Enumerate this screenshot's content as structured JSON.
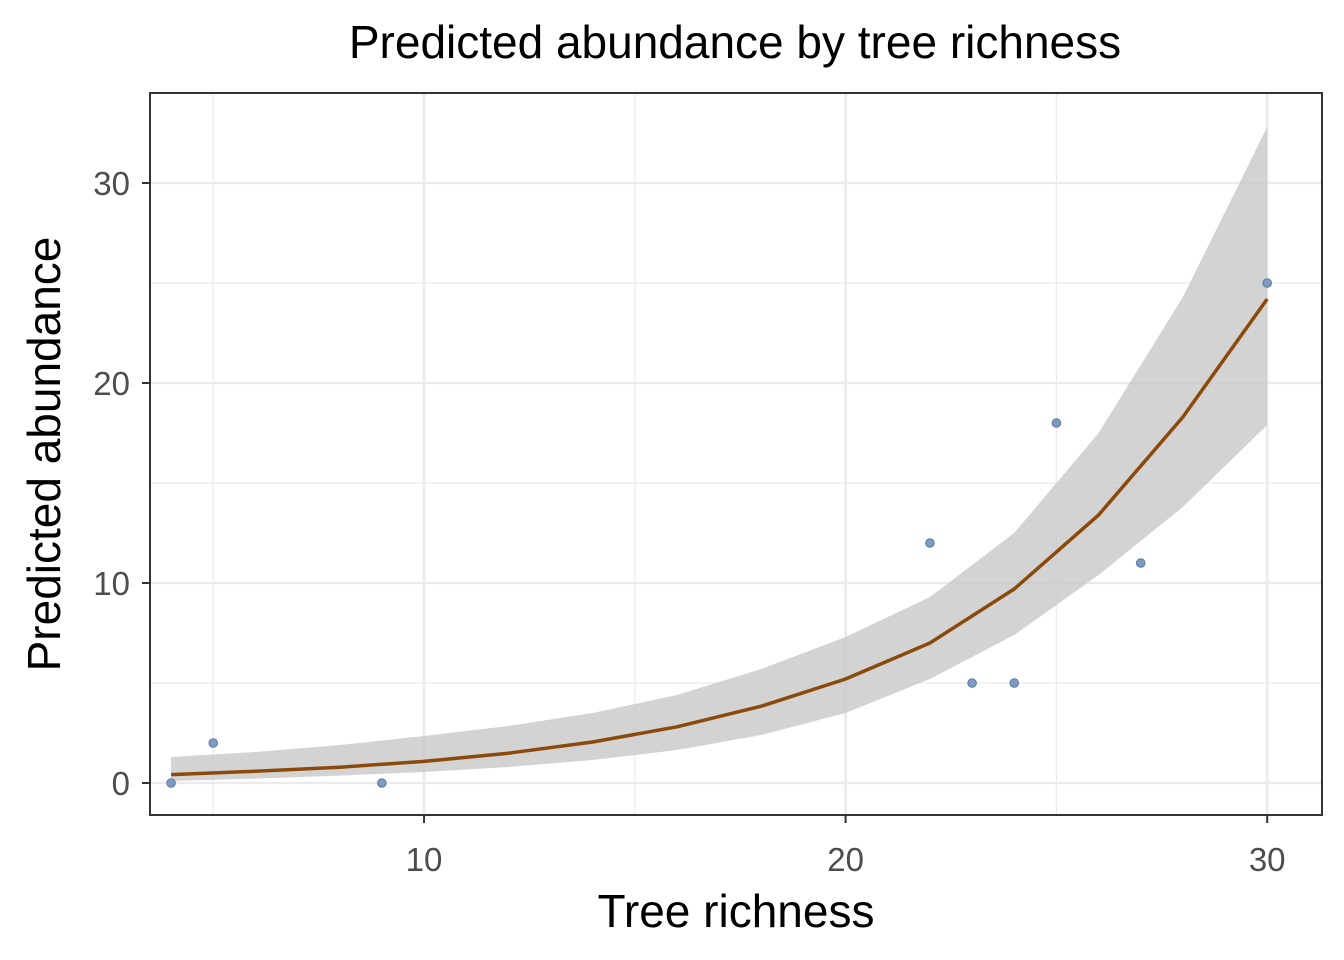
{
  "chart_data": {
    "type": "scatter",
    "title": "Predicted abundance by tree richness",
    "xlabel": "Tree richness",
    "ylabel": "Predicted abundance",
    "xlim": [
      3.5,
      31.3
    ],
    "ylim": [
      -1.6,
      34.5
    ],
    "x_ticks": [
      10,
      20,
      30
    ],
    "y_ticks": [
      0,
      10,
      20,
      30
    ],
    "x_tick_labels": [
      "10",
      "20",
      "30"
    ],
    "y_tick_labels": [
      "0",
      "10",
      "20",
      "30"
    ],
    "grid": true,
    "legend": "none",
    "points": [
      {
        "x": 4,
        "y": 0
      },
      {
        "x": 5,
        "y": 2
      },
      {
        "x": 9,
        "y": 0
      },
      {
        "x": 22,
        "y": 12
      },
      {
        "x": 23,
        "y": 5
      },
      {
        "x": 24,
        "y": 5
      },
      {
        "x": 25,
        "y": 18
      },
      {
        "x": 27,
        "y": 11
      },
      {
        "x": 30,
        "y": 25
      }
    ],
    "fit": {
      "name": "",
      "x": [
        4,
        6,
        8,
        10,
        12,
        14,
        16,
        18,
        20,
        22,
        24,
        26,
        28,
        30
      ],
      "y": [
        0.42,
        0.59,
        0.79,
        1.08,
        1.49,
        2.05,
        2.81,
        3.84,
        5.2,
        7.0,
        9.7,
        13.4,
        18.3,
        24.2
      ],
      "lower": [
        0.1,
        0.22,
        0.37,
        0.55,
        0.8,
        1.15,
        1.65,
        2.4,
        3.5,
        5.2,
        7.4,
        10.4,
        13.8,
        17.9
      ],
      "upper": [
        1.3,
        1.55,
        1.9,
        2.35,
        2.85,
        3.5,
        4.4,
        5.7,
        7.3,
        9.3,
        12.5,
        17.5,
        24.3,
        32.8
      ]
    },
    "colors": {
      "points": "#7f9cc0",
      "points_outline": "#5a7aa3",
      "fit_line": "#8b4a0a",
      "ribbon": "#c8c8c8",
      "grid": "#ebebeb",
      "panel_border": "#333333",
      "tick_label": "#4d4d4d"
    }
  }
}
